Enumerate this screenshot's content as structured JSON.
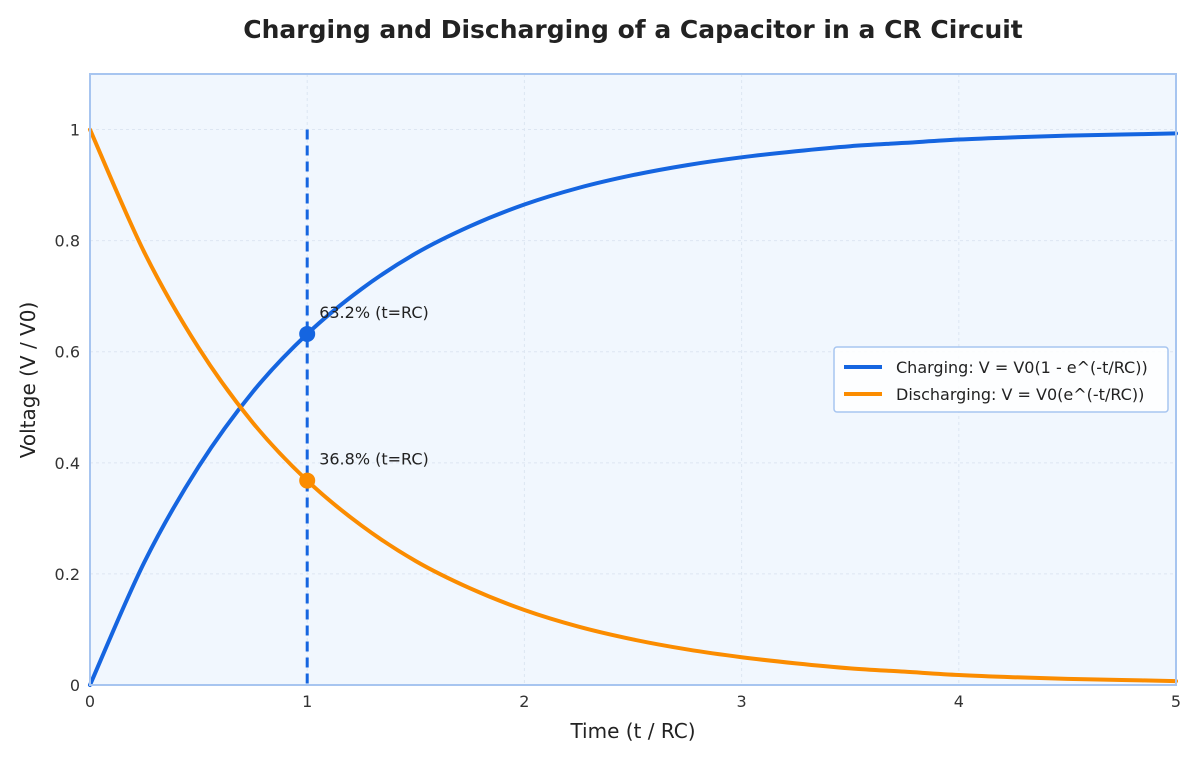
{
  "chart_data": {
    "type": "line",
    "title": "Charging and Discharging of a Capacitor in a CR Circuit",
    "xlabel": "Time (t / RC)",
    "ylabel": "Voltage (V / V0)",
    "xlim": [
      0,
      5
    ],
    "ylim": [
      0,
      1.1
    ],
    "x_ticks": [
      0,
      1,
      2,
      3,
      4,
      5
    ],
    "x_tick_labels": [
      "0",
      "1",
      "2",
      "3",
      "4",
      "5"
    ],
    "y_ticks": [
      0,
      0.2,
      0.4,
      0.6,
      0.8,
      1
    ],
    "y_tick_labels": [
      "0",
      "0.2",
      "0.4",
      "0.6",
      "0.8",
      "1"
    ],
    "grid": true,
    "legend_position": "center-right",
    "x": [
      0,
      0.25,
      0.5,
      0.75,
      1,
      1.25,
      1.5,
      1.75,
      2,
      2.25,
      2.5,
      2.75,
      3,
      3.25,
      3.5,
      3.75,
      4,
      4.25,
      4.5,
      4.75,
      5
    ],
    "series": [
      {
        "name": "Charging: V = V0(1 - e^(-t/RC))",
        "color": "#1565e0",
        "values": [
          0,
          0.221,
          0.393,
          0.528,
          0.632,
          0.713,
          0.777,
          0.826,
          0.865,
          0.895,
          0.918,
          0.936,
          0.95,
          0.961,
          0.97,
          0.976,
          0.982,
          0.986,
          0.989,
          0.991,
          0.993
        ]
      },
      {
        "name": "Discharging: V = V0(e^(-t/RC))",
        "color": "#fb8c00",
        "values": [
          1,
          0.779,
          0.607,
          0.472,
          0.368,
          0.287,
          0.223,
          0.174,
          0.135,
          0.105,
          0.082,
          0.064,
          0.05,
          0.039,
          0.03,
          0.024,
          0.018,
          0.014,
          0.011,
          0.009,
          0.007
        ]
      }
    ],
    "markers": [
      {
        "x": 1,
        "y": 0.632,
        "color": "#1565e0",
        "label": "63.2% (t=RC)"
      },
      {
        "x": 1,
        "y": 0.368,
        "color": "#fb8c00",
        "label": "36.8% (t=RC)"
      }
    ],
    "vline": {
      "x": 1,
      "y_from": 0,
      "y_to": 1,
      "color": "#1565e0",
      "style": "dashed"
    },
    "background_color": "#f1f7fe",
    "frame_color": "#a7c5f0"
  }
}
